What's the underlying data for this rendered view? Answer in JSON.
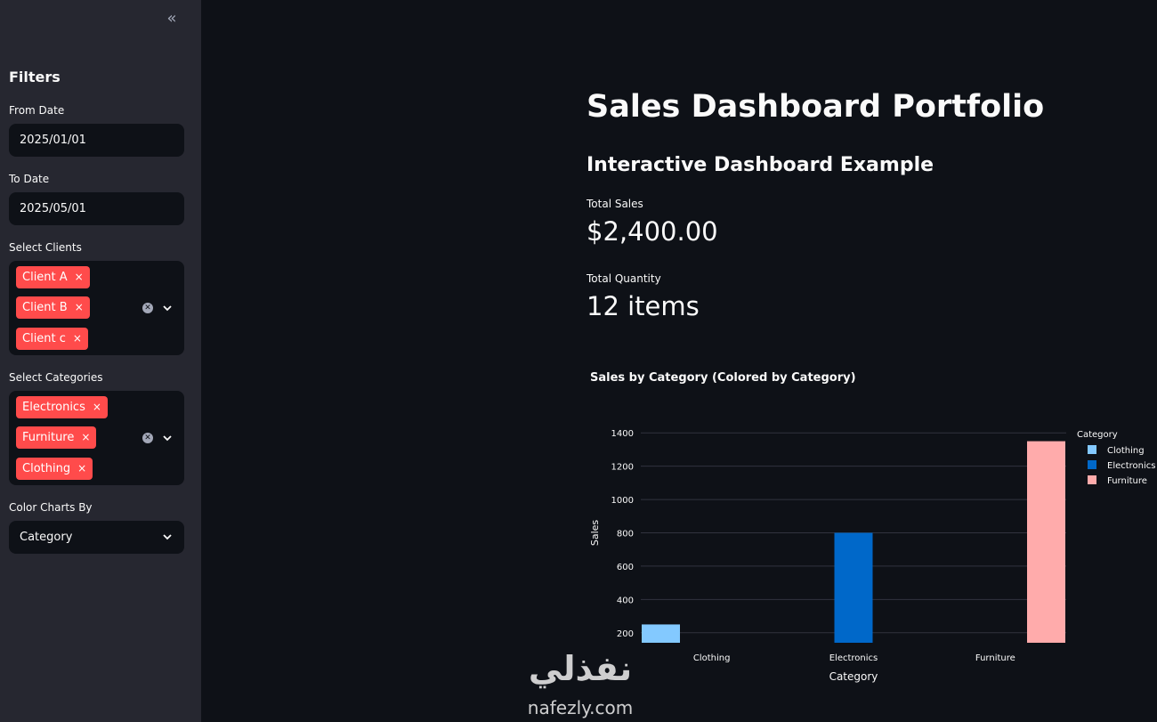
{
  "sidebar": {
    "title": "Filters",
    "from_date_label": "From Date",
    "from_date_value": "2025/01/01",
    "to_date_label": "To Date",
    "to_date_value": "2025/05/01",
    "clients_label": "Select Clients",
    "clients": [
      "Client A",
      "Client B",
      "Client c"
    ],
    "categories_label": "Select Categories",
    "categories": [
      "Electronics",
      "Furniture",
      "Clothing"
    ],
    "color_by_label": "Color Charts By",
    "color_by_value": "Category",
    "remove_glyph": "×"
  },
  "main": {
    "title": "Sales Dashboard Portfolio",
    "subtitle": "Interactive Dashboard Example",
    "metrics": [
      {
        "label": "Total Sales",
        "value": "$2,400.00"
      },
      {
        "label": "Total Quantity",
        "value": "12 items"
      }
    ]
  },
  "chart_data": {
    "type": "bar",
    "title": "Sales by Category (Colored by Category)",
    "xlabel": "Category",
    "ylabel": "Sales",
    "categories": [
      "Clothing",
      "Electronics",
      "Furniture"
    ],
    "values": [
      250,
      800,
      1350
    ],
    "colors": [
      "#83c9ff",
      "#0068c9",
      "#ffabab"
    ],
    "yticks": [
      200,
      400,
      600,
      800,
      1000,
      1200,
      1400
    ],
    "ylim": [
      140,
      1460
    ],
    "grid": true,
    "legend": {
      "title": "Category",
      "placement": "top-right",
      "entries": [
        "Clothing",
        "Electronics",
        "Furniture"
      ]
    }
  },
  "watermark": {
    "arabic": "نفذلي",
    "latin": "nafezly.com"
  },
  "colors": {
    "background": "#0e1117",
    "sidebar": "#262730",
    "accent": "#ff4b4b"
  }
}
